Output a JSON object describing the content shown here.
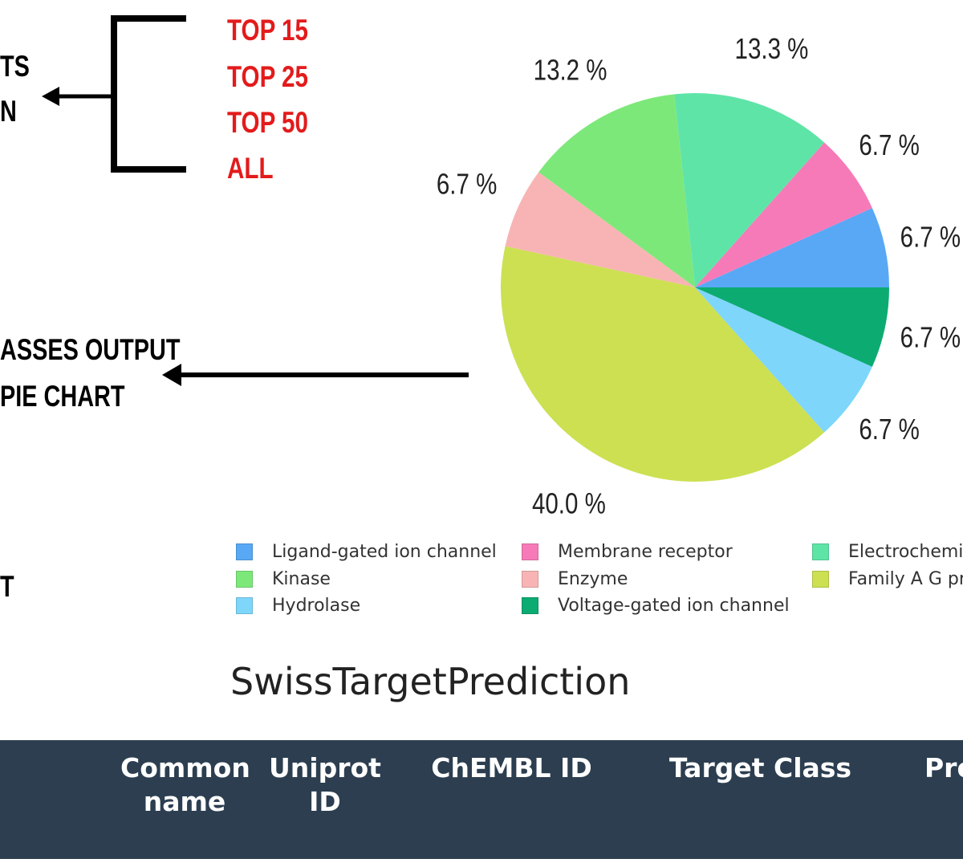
{
  "annotations": {
    "fragment_1": "TS",
    "fragment_2": "N",
    "fragment_3": "ASSES OUTPUT",
    "fragment_4": "PIE CHART",
    "fragment_5": "T"
  },
  "top_options": [
    {
      "label": "TOP 15",
      "color": "#e31b1b"
    },
    {
      "label": "TOP 25",
      "color": "#e31b1b"
    },
    {
      "label": "TOP 50",
      "color": "#e31b1b"
    },
    {
      "label": "ALL",
      "color": "#e31b1b"
    }
  ],
  "chart_data": {
    "type": "pie",
    "slices": [
      {
        "label": "Ligand-gated ion channel",
        "value": 6.7,
        "display": "6.7 %",
        "color": "#58a8f5"
      },
      {
        "label": "Membrane receptor",
        "value": 6.7,
        "display": "6.7 %",
        "color": "#f67ab8"
      },
      {
        "label": "Electrochemic",
        "value": 13.3,
        "display": "13.3 %",
        "color": "#5fe4a8"
      },
      {
        "label": "Kinase",
        "value": 13.2,
        "display": "13.2 %",
        "color": "#7de87a"
      },
      {
        "label": "Enzyme",
        "value": 6.7,
        "display": "6.7 %",
        "color": "#f8b4b4"
      },
      {
        "label": "Family A G pr",
        "value": 40.0,
        "display": "40.0 %",
        "color": "#cde052"
      },
      {
        "label": "Hydrolase",
        "value": 6.7,
        "display": "6.7 %",
        "color": "#7ed6fb"
      },
      {
        "label": "Voltage-gated ion channel",
        "value": 6.7,
        "display": "6.7 %",
        "color": "#0cab72"
      }
    ],
    "legend_placement": "bottom"
  },
  "legend_labels": {
    "ligand": "Ligand-gated ion channel",
    "membrane": "Membrane receptor",
    "electro": "Electrochemic",
    "kinase": "Kinase",
    "enzyme": "Enzyme",
    "familya": "Family A G pr",
    "hydrolase": "Hydrolase",
    "voltage": "Voltage-gated ion channel"
  },
  "brand": "SwissTargetPrediction",
  "table": {
    "headers": [
      "Common\nname",
      "Uniprot\nID",
      "ChEMBL ID",
      "Target Class",
      "Pro"
    ],
    "header_bg": "#2c3e50"
  }
}
